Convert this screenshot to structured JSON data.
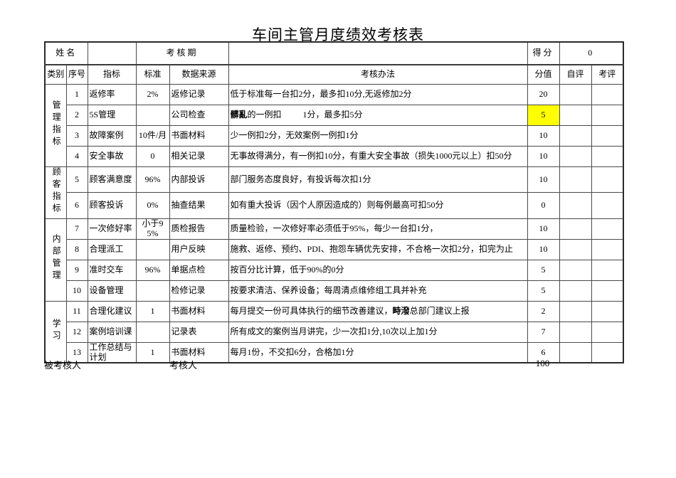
{
  "title": "车间主管月度绩效考核表",
  "colors": {
    "highlight": "#ffff00"
  },
  "top_header": {
    "name_label": "姓名",
    "name_value": "",
    "period_label": "考核期",
    "period_value": "",
    "score_label": "得分",
    "score_value": "0"
  },
  "columns": [
    "类别",
    "序号",
    "指标",
    "标准",
    "数据来源",
    "考核办法",
    "分值",
    "自评",
    "考评"
  ],
  "groups": [
    {
      "label": "管理指标",
      "rows": [
        {
          "no": "1",
          "indicator": "返修率",
          "standard": "2%",
          "source": "返修记录",
          "method": [
            {
              "t": "低于标准每一台扣2分，最多扣10分,无返修加2分",
              "b": false
            }
          ],
          "score": "20",
          "self": "",
          "review": "",
          "highlight": false
        },
        {
          "no": "2",
          "indicator": "5S管理",
          "standard": "",
          "source": "公司检查",
          "method": [
            {
              "t": "髒亂",
              "b": true
            },
            {
              "t": "的一例扣          1分，最多扣5分",
              "b": false
            }
          ],
          "score": "5",
          "self": "",
          "review": "",
          "highlight": true
        },
        {
          "no": "3",
          "indicator": "故障案例",
          "standard": "10件/月",
          "source": "书面材料",
          "method": [
            {
              "t": "少一例扣2分，无效案例一例扣1分",
              "b": false
            }
          ],
          "score": "10",
          "self": "",
          "review": "",
          "highlight": false
        },
        {
          "no": "4",
          "indicator": "安全事故",
          "standard": "0",
          "source": "相关记录",
          "method": [
            {
              "t": "无事故得满分，有一例扣10分，有重大安全事故（损失1000元以上）扣50分",
              "b": false
            }
          ],
          "score": "10",
          "self": "",
          "review": "",
          "highlight": false
        }
      ]
    },
    {
      "label": "顾客指标",
      "rows": [
        {
          "no": "5",
          "indicator": "顾客满意度",
          "standard": "96%",
          "source": "内部投诉",
          "method": [
            {
              "t": "部门服务态度良好，有投诉每次扣1分",
              "b": false
            }
          ],
          "score": "10",
          "self": "",
          "review": "",
          "highlight": false
        },
        {
          "no": "6",
          "indicator": "顾客投诉",
          "standard": "0%",
          "source": "抽查结果",
          "method": [
            {
              "t": "如有重大投诉（因个人原因造成的）则每例最高可扣50分",
              "b": false
            }
          ],
          "score": "0",
          "self": "",
          "review": "",
          "highlight": false
        }
      ]
    },
    {
      "label": "内部管理",
      "rows": [
        {
          "no": "7",
          "indicator": "一次修好率",
          "standard": "小于95%",
          "source": "质检报告",
          "method": [
            {
              "t": "质量检验，一次修好率必须低于95%，每少一台扣1分，",
              "b": false
            }
          ],
          "score": "10",
          "self": "",
          "review": "",
          "highlight": false
        },
        {
          "no": "8",
          "indicator": "合理派工",
          "standard": "",
          "source": "用户反映",
          "method": [
            {
              "t": "施救、返修、预约、PDI、抱怨车辆优先安排，不合格一次扣2分，扣完为止",
              "b": false
            }
          ],
          "score": "10",
          "self": "",
          "review": "",
          "highlight": false
        },
        {
          "no": "9",
          "indicator": "准时交车",
          "standard": "96%",
          "source": "单据点检",
          "method": [
            {
              "t": "按百分比计算，低于90%的0分",
              "b": false
            }
          ],
          "score": "5",
          "self": "",
          "review": "",
          "highlight": false
        },
        {
          "no": "10",
          "indicator": "设备管理",
          "standard": "",
          "source": "检修记录",
          "method": [
            {
              "t": "按要求清洁、保养设备；每周清点维修组工具并补充",
              "b": false
            }
          ],
          "score": "5",
          "self": "",
          "review": "",
          "highlight": false
        }
      ]
    },
    {
      "label": "学习",
      "rows": [
        {
          "no": "11",
          "indicator": "合理化建议",
          "standard": "1",
          "source": "书面材料",
          "method": [
            {
              "t": "每月提交一份可具体执行的细节改善建议，",
              "b": false
            },
            {
              "t": "畤潑",
              "b": true
            },
            {
              "t": "总部门建议上报",
              "b": false
            }
          ],
          "score": "2",
          "self": "",
          "review": "",
          "highlight": false
        },
        {
          "no": "12",
          "indicator": "案例培训课",
          "standard": "",
          "source": "记录表",
          "method": [
            {
              "t": "所有成文的案例当月讲完，少一次扣1分,10次以上加1分",
              "b": false
            }
          ],
          "score": "7",
          "self": "",
          "review": "",
          "highlight": false
        },
        {
          "no": "13",
          "indicator": "工作总结与计划",
          "standard": "1",
          "source": "书面材料",
          "method": [
            {
              "t": "每月1份，不交扣6分，合格加1分",
              "b": false
            }
          ],
          "score": "6",
          "self": "",
          "review": "",
          "highlight": false
        }
      ]
    }
  ],
  "footer": {
    "evaluee_label": "被考核人",
    "evaluator_label": "考核人",
    "total_score": "100"
  }
}
